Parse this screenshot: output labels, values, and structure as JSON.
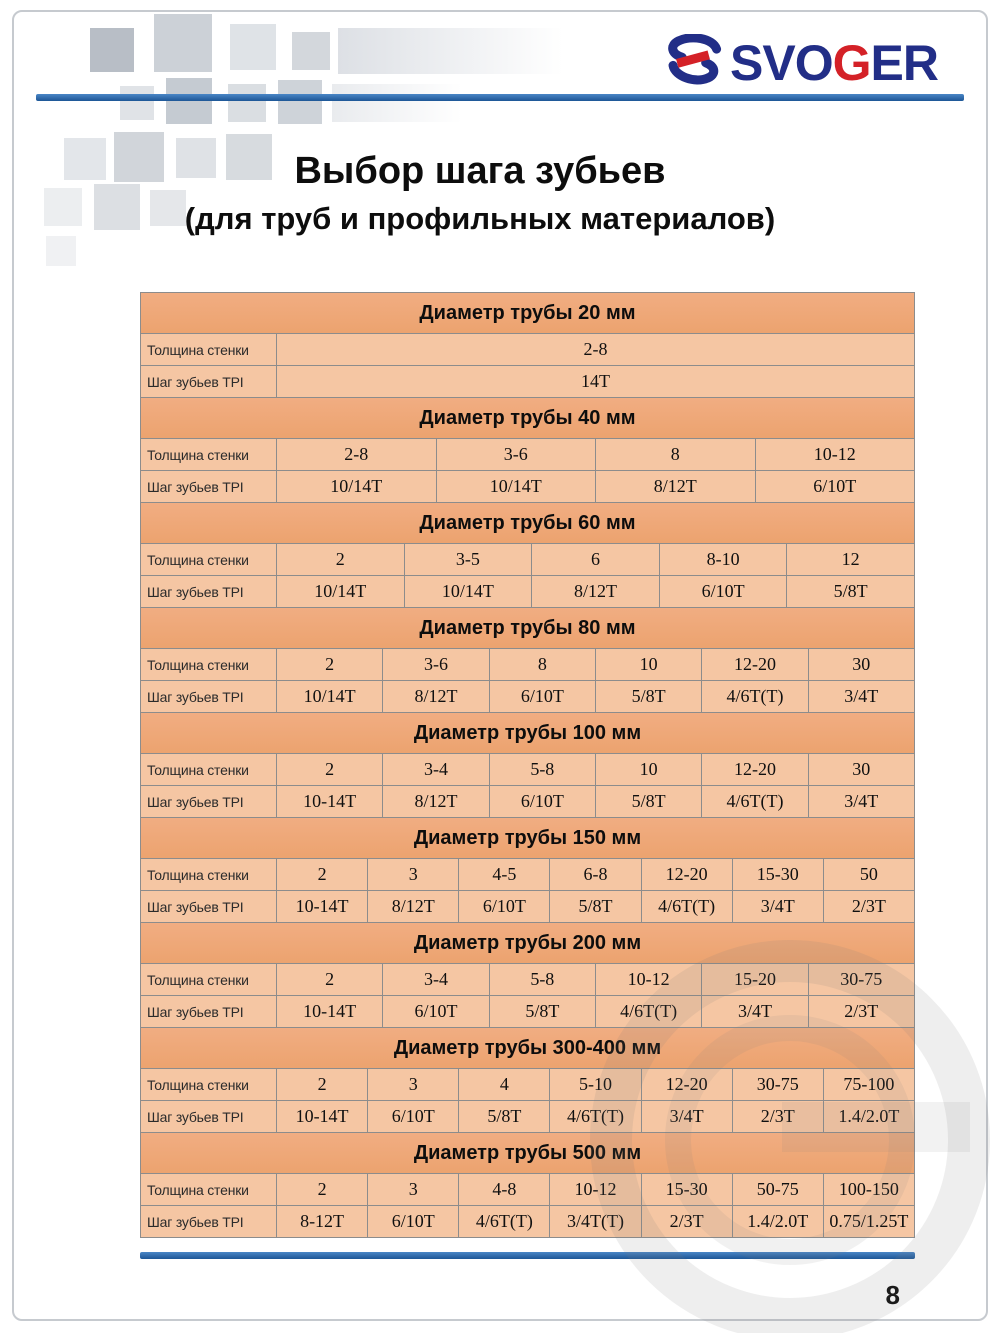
{
  "page": {
    "number": "8"
  },
  "brand": {
    "prefix": "SVO",
    "g": "G",
    "suffix": "ER"
  },
  "title": {
    "line1": "Выбор шага зубьев",
    "line2": "(для труб и профильных материалов)"
  },
  "labels": {
    "thickness": "Толщина стенки",
    "tpi": "Шаг зубьев TPI"
  },
  "colors": {
    "accent_blue": "#2a6db0",
    "brand_blue": "#222e87",
    "brand_red": "#d42127",
    "table_header_bg": "#efa87c",
    "table_row_bg": "#f5c6a3"
  },
  "tables": [
    {
      "header": "Диаметр трубы 20 мм",
      "thickness": [
        "2-8"
      ],
      "tpi": [
        "14T"
      ]
    },
    {
      "header": "Диаметр трубы 40 мм",
      "thickness": [
        "2-8",
        "3-6",
        "8",
        "10-12"
      ],
      "tpi": [
        "10/14T",
        "10/14T",
        "8/12T",
        "6/10T"
      ]
    },
    {
      "header": "Диаметр трубы 60 мм",
      "thickness": [
        "2",
        "3-5",
        "6",
        "8-10",
        "12"
      ],
      "tpi": [
        "10/14T",
        "10/14T",
        "8/12T",
        "6/10T",
        "5/8T"
      ]
    },
    {
      "header": "Диаметр трубы 80 мм",
      "thickness": [
        "2",
        "3-6",
        "8",
        "10",
        "12-20",
        "30"
      ],
      "tpi": [
        "10/14T",
        "8/12T",
        "6/10T",
        "5/8T",
        "4/6T(T)",
        "3/4T"
      ]
    },
    {
      "header": "Диаметр трубы 100 мм",
      "thickness": [
        "2",
        "3-4",
        "5-8",
        "10",
        "12-20",
        "30"
      ],
      "tpi": [
        "10-14T",
        "8/12T",
        "6/10T",
        "5/8T",
        "4/6T(T)",
        "3/4T"
      ]
    },
    {
      "header": "Диаметр трубы 150 мм",
      "thickness": [
        "2",
        "3",
        "4-5",
        "6-8",
        "12-20",
        "15-30",
        "50"
      ],
      "tpi": [
        "10-14T",
        "8/12T",
        "6/10T",
        "5/8T",
        "4/6T(T)",
        "3/4T",
        "2/3T"
      ]
    },
    {
      "header": "Диаметр трубы 200 мм",
      "thickness": [
        "2",
        "3-4",
        "5-8",
        "10-12",
        "15-20",
        "30-75"
      ],
      "tpi": [
        "10-14T",
        "6/10T",
        "5/8T",
        "4/6T(T)",
        "3/4T",
        "2/3T"
      ]
    },
    {
      "header": "Диаметр трубы 300-400 мм",
      "thickness": [
        "2",
        "3",
        "4",
        "5-10",
        "12-20",
        "30-75",
        "75-100"
      ],
      "tpi": [
        "10-14T",
        "6/10T",
        "5/8T",
        "4/6T(T)",
        "3/4T",
        "2/3T",
        "1.4/2.0T"
      ]
    },
    {
      "header": "Диаметр трубы 500 мм",
      "thickness": [
        "2",
        "3",
        "4-8",
        "10-12",
        "15-30",
        "50-75",
        "100-150"
      ],
      "tpi": [
        "8-12T",
        "6/10T",
        "4/6T(T)",
        "3/4T(T)",
        "2/3T",
        "1.4/2.0T",
        "0.75/1.25T"
      ]
    }
  ]
}
